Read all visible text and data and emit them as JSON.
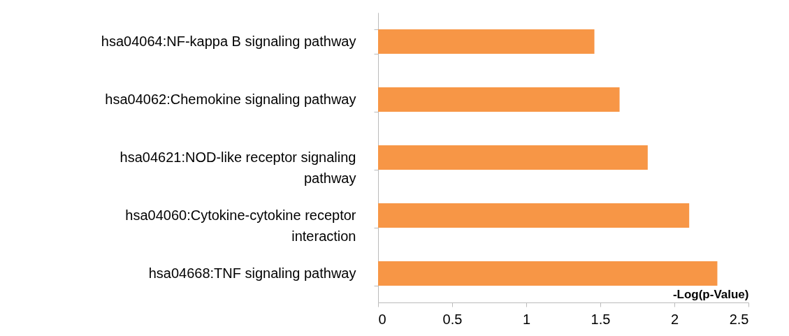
{
  "chart_data": {
    "type": "bar",
    "orientation": "horizontal",
    "xlabel": "-Log(p-Value)",
    "categories": [
      "hsa04064:NF-kappa B signaling pathway",
      "hsa04062:Chemokine signaling pathway",
      "hsa04621:NOD-like receptor signaling pathway",
      "hsa04060:Cytokine-cytokine receptor interaction",
      "hsa04668:TNF signaling pathway"
    ],
    "values": [
      1.46,
      1.63,
      1.82,
      2.1,
      2.29
    ],
    "color": "#f79646",
    "xlim": [
      0,
      2.5
    ],
    "xticks": [
      0,
      0.5,
      1,
      1.5,
      2,
      2.5
    ],
    "grid": false
  }
}
